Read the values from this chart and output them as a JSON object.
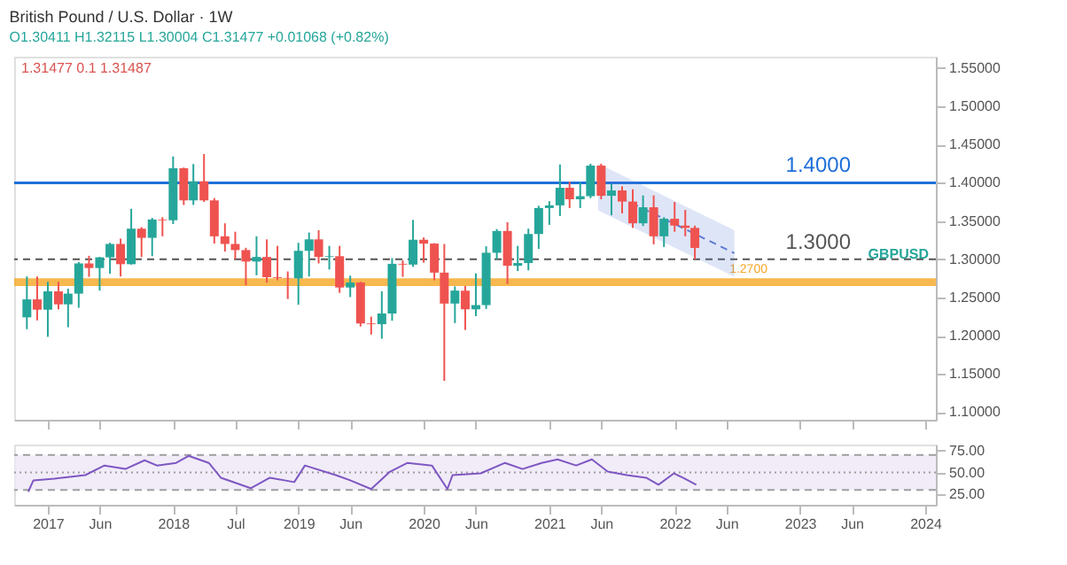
{
  "chart_data": [
    {
      "type": "candlestick",
      "title": "British Pound / U.S. Dollar · 1W",
      "subtitle": "O1.30411 H1.32115 L1.30004 C1.31477 +0.01068 (+0.82%)",
      "annotations": [
        "1.31477  0.1  1.31487",
        "GBPUSD"
      ],
      "x": [
        "2016-11-01",
        "2016-12-01",
        "2017-01-01",
        "2017-02-01",
        "2017-03-01",
        "2017-04-01",
        "2017-05-01",
        "2017-06-01",
        "2017-07-01",
        "2017-08-01",
        "2017-09-01",
        "2017-10-01",
        "2017-11-01",
        "2017-12-01",
        "2018-01-01",
        "2018-02-01",
        "2018-03-01",
        "2018-04-01",
        "2018-05-01",
        "2018-06-01",
        "2018-07-01",
        "2018-08-01",
        "2018-09-01",
        "2018-10-01",
        "2018-11-01",
        "2018-12-01",
        "2019-01-01",
        "2019-02-01",
        "2019-03-01",
        "2019-04-01",
        "2019-05-01",
        "2019-06-01",
        "2019-07-01",
        "2019-08-01",
        "2019-09-01",
        "2019-10-01",
        "2019-11-01",
        "2019-12-01",
        "2020-01-01",
        "2020-02-01",
        "2020-03-01",
        "2020-04-01",
        "2020-05-01",
        "2020-06-01",
        "2020-07-01",
        "2020-08-01",
        "2020-09-01",
        "2020-10-01",
        "2020-11-01",
        "2020-12-01",
        "2021-01-01",
        "2021-02-01",
        "2021-03-01",
        "2021-04-01",
        "2021-05-01",
        "2021-06-01",
        "2021-07-01",
        "2021-08-01",
        "2021-09-01",
        "2021-10-01",
        "2021-11-01",
        "2021-12-01",
        "2022-01-01",
        "2022-02-01",
        "2022-03-01"
      ],
      "ohlc": [
        [
          1.224,
          1.2775,
          1.2085,
          1.2475
        ],
        [
          1.2475,
          1.2775,
          1.22,
          1.234
        ],
        [
          1.234,
          1.2705,
          1.1985,
          1.258
        ],
        [
          1.258,
          1.2705,
          1.2345,
          1.241
        ],
        [
          1.241,
          1.2615,
          1.211,
          1.255
        ],
        [
          1.255,
          1.2965,
          1.2365,
          1.2945
        ],
        [
          1.2945,
          1.3045,
          1.277,
          1.2885
        ],
        [
          1.2885,
          1.303,
          1.259,
          1.3025
        ],
        [
          1.3025,
          1.3215,
          1.281,
          1.32
        ],
        [
          1.32,
          1.327,
          1.2775,
          1.2935
        ],
        [
          1.2935,
          1.366,
          1.293,
          1.34
        ],
        [
          1.34,
          1.342,
          1.303,
          1.328
        ],
        [
          1.328,
          1.354,
          1.304,
          1.352
        ],
        [
          1.352,
          1.355,
          1.33,
          1.351
        ],
        [
          1.351,
          1.4345,
          1.346,
          1.419
        ],
        [
          1.419,
          1.42,
          1.371,
          1.377
        ],
        [
          1.377,
          1.4245,
          1.371,
          1.402
        ],
        [
          1.402,
          1.4377,
          1.375,
          1.377
        ],
        [
          1.377,
          1.38,
          1.3205,
          1.33
        ],
        [
          1.33,
          1.347,
          1.31,
          1.32
        ],
        [
          1.32,
          1.336,
          1.3,
          1.312
        ],
        [
          1.312,
          1.315,
          1.266,
          1.297
        ],
        [
          1.297,
          1.33,
          1.279,
          1.303
        ],
        [
          1.303,
          1.326,
          1.2695,
          1.2765
        ],
        [
          1.2765,
          1.3175,
          1.2725,
          1.2755
        ],
        [
          1.2755,
          1.284,
          1.248,
          1.275
        ],
        [
          1.275,
          1.3215,
          1.2405,
          1.311
        ],
        [
          1.311,
          1.335,
          1.2775,
          1.326
        ],
        [
          1.326,
          1.338,
          1.2945,
          1.303
        ],
        [
          1.303,
          1.3175,
          1.2865,
          1.304
        ],
        [
          1.304,
          1.3175,
          1.256,
          1.263
        ],
        [
          1.263,
          1.2785,
          1.2505,
          1.2695
        ],
        [
          1.2695,
          1.2705,
          1.212,
          1.216
        ],
        [
          1.216,
          1.225,
          1.2015,
          1.215
        ],
        [
          1.215,
          1.258,
          1.196,
          1.229
        ],
        [
          1.229,
          1.3015,
          1.2195,
          1.294
        ],
        [
          1.294,
          1.2985,
          1.277,
          1.293
        ],
        [
          1.293,
          1.3515,
          1.29,
          1.3255
        ],
        [
          1.3255,
          1.3285,
          1.2955,
          1.3205
        ],
        [
          1.3205,
          1.321,
          1.2725,
          1.2825
        ],
        [
          1.2825,
          1.32,
          1.141,
          1.242
        ],
        [
          1.242,
          1.2645,
          1.2165,
          1.259
        ],
        [
          1.259,
          1.265,
          1.2075,
          1.2345
        ],
        [
          1.2345,
          1.2815,
          1.2255,
          1.24
        ],
        [
          1.24,
          1.317,
          1.235,
          1.3085
        ],
        [
          1.3085,
          1.3395,
          1.3,
          1.337
        ],
        [
          1.337,
          1.3485,
          1.2675,
          1.2915
        ],
        [
          1.2915,
          1.3175,
          1.2845,
          1.295
        ],
        [
          1.295,
          1.34,
          1.2855,
          1.333
        ],
        [
          1.333,
          1.37,
          1.3135,
          1.367
        ],
        [
          1.367,
          1.376,
          1.345,
          1.3705
        ],
        [
          1.3705,
          1.424,
          1.3565,
          1.3935
        ],
        [
          1.3935,
          1.4015,
          1.367,
          1.3785
        ],
        [
          1.3785,
          1.401,
          1.367,
          1.3825
        ],
        [
          1.3825,
          1.425,
          1.38,
          1.4225
        ],
        [
          1.4225,
          1.425,
          1.3785,
          1.383
        ],
        [
          1.383,
          1.3985,
          1.3575,
          1.39
        ],
        [
          1.39,
          1.3955,
          1.36,
          1.3755
        ],
        [
          1.3755,
          1.3915,
          1.341,
          1.347
        ],
        [
          1.347,
          1.3835,
          1.3435,
          1.368
        ],
        [
          1.368,
          1.3835,
          1.3195,
          1.33
        ],
        [
          1.33,
          1.355,
          1.316,
          1.353
        ],
        [
          1.353,
          1.375,
          1.336,
          1.344
        ],
        [
          1.344,
          1.3645,
          1.33,
          1.341
        ],
        [
          1.341,
          1.344,
          1.3,
          1.3148
        ]
      ],
      "colors": [
        "#26a69a",
        "#ef5350",
        "#26a69a",
        "#ef5350",
        "#26a69a",
        "#26a69a",
        "#ef5350",
        "#26a69a",
        "#26a69a",
        "#ef5350",
        "#26a69a",
        "#ef5350",
        "#26a69a",
        "#ef5350",
        "#26a69a",
        "#ef5350",
        "#26a69a",
        "#ef5350",
        "#ef5350",
        "#ef5350",
        "#ef5350",
        "#ef5350",
        "#26a69a",
        "#ef5350",
        "#ef5350",
        "#ef5350",
        "#26a69a",
        "#26a69a",
        "#ef5350",
        "#26a69a",
        "#ef5350",
        "#26a69a",
        "#ef5350",
        "#ef5350",
        "#26a69a",
        "#26a69a",
        "#ef5350",
        "#26a69a",
        "#ef5350",
        "#ef5350",
        "#ef5350",
        "#26a69a",
        "#ef5350",
        "#26a69a",
        "#26a69a",
        "#26a69a",
        "#ef5350",
        "#26a69a",
        "#26a69a",
        "#26a69a",
        "#26a69a",
        "#26a69a",
        "#ef5350",
        "#26a69a",
        "#26a69a",
        "#ef5350",
        "#26a69a",
        "#ef5350",
        "#ef5350",
        "#26a69a",
        "#ef5350",
        "#26a69a",
        "#ef5350",
        "#ef5350",
        "#ef5350"
      ],
      "series": [
        {
          "type": "line",
          "color": "#5b7bd5",
          "line_style": "dashed",
          "x": [
            "2021-05-23",
            "2022-06-24"
          ],
          "values": [
            1.395,
            1.308
          ],
          "lower": [
            1.364,
            1.277
          ],
          "upper": [
            1.425,
            1.338
          ]
        }
      ],
      "ref_lines": [
        {
          "axis": "y",
          "value": 1.4,
          "label": "1.4000",
          "color": "#1e6fd9",
          "line_style": "solid"
        },
        {
          "axis": "y",
          "value": 1.3,
          "label": "1.3000",
          "color": "#555555",
          "line_style": "dashed"
        }
      ],
      "bands": [
        {
          "axis": "y",
          "from": 1.265,
          "to": 1.275,
          "label": "1.2700",
          "color": "#f5a623"
        }
      ],
      "xlim": [
        "2016-09-25",
        "2024-02-01"
      ],
      "xticks": [
        {
          "value": "2017-01-01",
          "label": null
        },
        {
          "value": "2017-06-01",
          "label": null
        },
        {
          "value": "2018-01-01",
          "label": null
        },
        {
          "value": "2018-07-01",
          "label": null
        },
        {
          "value": "2019-01-01",
          "label": null
        },
        {
          "value": "2019-06-01",
          "label": null
        },
        {
          "value": "2020-01-01",
          "label": null
        },
        {
          "value": "2020-06-01",
          "label": null
        },
        {
          "value": "2021-01-01",
          "label": null
        },
        {
          "value": "2021-06-01",
          "label": null
        },
        {
          "value": "2022-01-01",
          "label": null
        },
        {
          "value": "2022-06-01",
          "label": null
        },
        {
          "value": "2023-01-01",
          "label": null
        },
        {
          "value": "2023-06-01",
          "label": null
        },
        {
          "value": "2024-01-01",
          "label": null
        }
      ],
      "ylim": [
        1.09,
        1.565
      ],
      "yticks": [
        {
          "value": 1.1,
          "label": "1.10000"
        },
        {
          "value": 1.15,
          "label": "1.15000"
        },
        {
          "value": 1.2,
          "label": "1.20000"
        },
        {
          "value": 1.25,
          "label": "1.25000"
        },
        {
          "value": 1.3,
          "label": "1.30000"
        },
        {
          "value": 1.35,
          "label": "1.35000"
        },
        {
          "value": 1.4,
          "label": "1.40000"
        },
        {
          "value": 1.45,
          "label": "1.45000"
        },
        {
          "value": 1.5,
          "label": "1.50000"
        },
        {
          "value": 1.55,
          "label": "1.55000"
        }
      ],
      "tick_labels": "y"
    },
    {
      "type": "line",
      "series": [
        {
          "color": "#7e57c2",
          "x": [
            "2016-11-05",
            "2016-11-20",
            "2017-01-20",
            "2017-04-20",
            "2017-06-15",
            "2017-08-15",
            "2017-10-10",
            "2017-11-15",
            "2018-01-10",
            "2018-02-15",
            "2018-04-15",
            "2018-05-20",
            "2018-08-15",
            "2018-10-10",
            "2018-12-20",
            "2019-01-20",
            "2019-04-20",
            "2019-06-01",
            "2019-08-01",
            "2019-09-25",
            "2019-11-15",
            "2020-01-25",
            "2020-03-10",
            "2020-03-25",
            "2020-06-15",
            "2020-08-25",
            "2020-10-15",
            "2020-12-10",
            "2021-01-25",
            "2021-03-20",
            "2021-05-05",
            "2021-06-20",
            "2021-08-15",
            "2021-10-10",
            "2021-11-15",
            "2021-12-30",
            "2022-01-25",
            "2022-03-05"
          ],
          "values": [
            28,
            41,
            43,
            47,
            58,
            54,
            64,
            58,
            61,
            69,
            61,
            44,
            32,
            44,
            39,
            58,
            47,
            41,
            31,
            51,
            61,
            58,
            31,
            47,
            49,
            61,
            54,
            61,
            65,
            58,
            65,
            51,
            47,
            44,
            36,
            49,
            44,
            36
          ]
        }
      ],
      "ref_lines": [
        {
          "axis": "y",
          "value": 70,
          "color": "#9e9e9e",
          "line_style": "dashed"
        },
        {
          "axis": "y",
          "value": 50,
          "color": "#9e9e9e",
          "line_style": "dotted"
        },
        {
          "axis": "y",
          "value": 30,
          "color": "#9e9e9e",
          "line_style": "dashed"
        }
      ],
      "bands": [
        {
          "axis": "y",
          "from": 30,
          "to": 70,
          "color": "#ede7f6"
        }
      ],
      "xlim": [
        "2016-09-25",
        "2024-02-01"
      ],
      "xticks": [
        {
          "value": "2017-01-01",
          "label": "2017"
        },
        {
          "value": "2017-06-01",
          "label": "Jun"
        },
        {
          "value": "2018-01-01",
          "label": "2018"
        },
        {
          "value": "2018-07-01",
          "label": "Jul"
        },
        {
          "value": "2019-01-01",
          "label": "2019"
        },
        {
          "value": "2019-06-01",
          "label": "Jun"
        },
        {
          "value": "2020-01-01",
          "label": "2020"
        },
        {
          "value": "2020-06-01",
          "label": "Jun"
        },
        {
          "value": "2021-01-01",
          "label": "2021"
        },
        {
          "value": "2021-06-01",
          "label": "Jun"
        },
        {
          "value": "2022-01-01",
          "label": "2022"
        },
        {
          "value": "2022-06-01",
          "label": "Jun"
        },
        {
          "value": "2023-01-01",
          "label": "2023"
        },
        {
          "value": "2023-06-01",
          "label": "Jun"
        },
        {
          "value": "2024-01-01",
          "label": "2024"
        }
      ],
      "ylim": [
        13,
        82
      ],
      "yticks": [
        {
          "value": 25,
          "label": "25.00"
        },
        {
          "value": 50,
          "label": "50.00"
        },
        {
          "value": 75,
          "label": "75.00"
        }
      ]
    }
  ]
}
